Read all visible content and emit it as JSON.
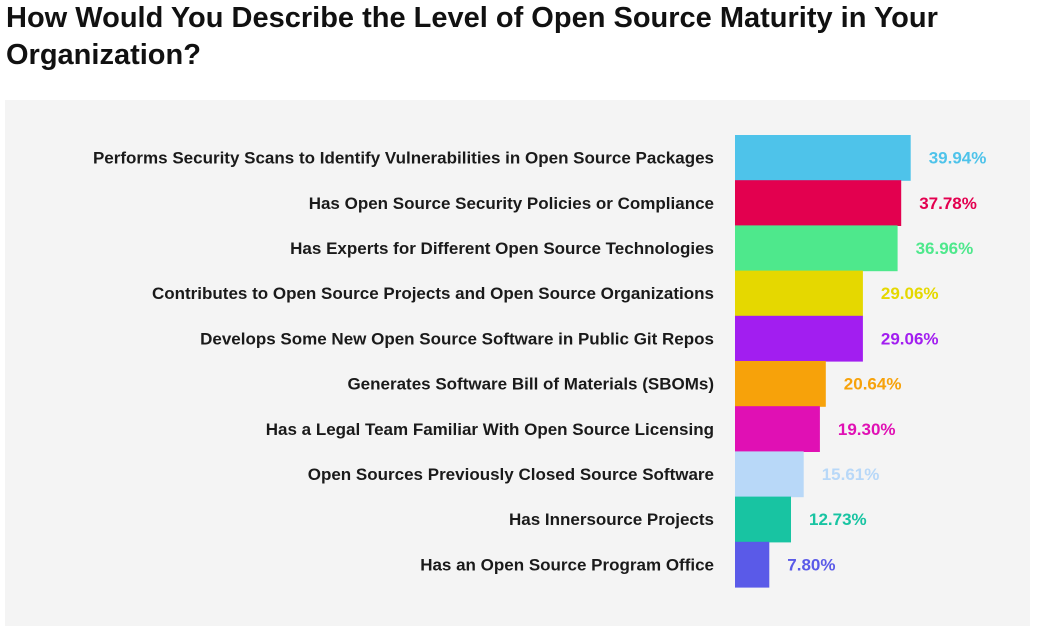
{
  "title": "How Would You Describe the Level of Open Source Maturity in Your Organization?",
  "chart_data": {
    "type": "bar",
    "orientation": "horizontal",
    "title": "How Would You Describe the Level of Open Source Maturity in Your Organization?",
    "xlabel": "",
    "ylabel": "",
    "categories": [
      "Performs Security Scans to Identify Vulnerabilities in Open Source Packages",
      "Has Open Source Security Policies or Compliance",
      "Has Experts for Different Open Source Technologies",
      "Contributes to Open Source Projects and Open Source Organizations",
      "Develops Some New Open Source Software in Public Git Repos",
      "Generates Software Bill of Materials (SBOMs)",
      "Has a Legal Team Familiar With Open Source Licensing",
      "Open Sources Previously Closed Source Software",
      "Has Innersource Projects",
      "Has an Open Source Program Office"
    ],
    "values": [
      39.94,
      37.78,
      36.96,
      29.06,
      29.06,
      20.64,
      19.3,
      15.61,
      12.73,
      7.8
    ],
    "value_labels": [
      "39.94%",
      "37.78%",
      "36.96%",
      "29.06%",
      "29.06%",
      "20.64%",
      "19.30%",
      "15.61%",
      "12.73%",
      "7.80%"
    ],
    "colors": [
      "#4ec3ea",
      "#e3004f",
      "#4ee88c",
      "#e5d800",
      "#a21ef0",
      "#f7a20a",
      "#e010b4",
      "#b8d8f8",
      "#18c4a2",
      "#5a5ae8"
    ],
    "xlim": [
      0,
      40
    ]
  }
}
